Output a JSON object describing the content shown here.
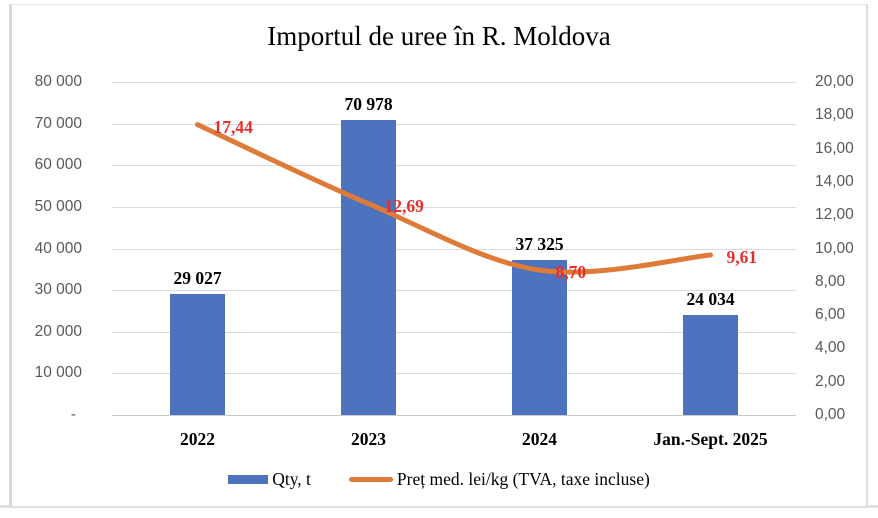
{
  "title": "Importul de uree în R. Moldova",
  "chart_data": {
    "type": "combo_bar_line",
    "title": "Importul de uree în R. Moldova",
    "categories": [
      "2022",
      "2023",
      "2024",
      "Jan.-Sept. 2025"
    ],
    "series": [
      {
        "name": "Qty, t",
        "type": "bar",
        "axis": "left",
        "values": [
          29027,
          70978,
          37325,
          24034
        ],
        "data_labels": [
          "29 027",
          "70 978",
          "37 325",
          "24 034"
        ],
        "color": "#4d73be",
        "label_color": "#000000"
      },
      {
        "name": "Preț med. lei/kg (TVA, taxe incluse)",
        "type": "line",
        "axis": "right",
        "values": [
          17.44,
          12.69,
          8.7,
          9.61
        ],
        "data_labels": [
          "17,44",
          "12,69",
          "8,70",
          "9,61"
        ],
        "color": "#df7b38",
        "label_color": "#e4302b"
      }
    ],
    "left_axis": {
      "min": 0,
      "max": 80000,
      "step": 10000,
      "tick_labels": [
        "80 000",
        "70 000",
        "60 000",
        "50 000",
        "40 000",
        "30 000",
        "20 000",
        "10 000",
        "-"
      ]
    },
    "right_axis": {
      "min": 0,
      "max": 20,
      "step": 2,
      "tick_labels": [
        "20,00",
        "18,00",
        "16,00",
        "14,00",
        "12,00",
        "10,00",
        "8,00",
        "6,00",
        "4,00",
        "2,00",
        "0,00"
      ]
    },
    "grid": true,
    "legend_position": "bottom",
    "xlabel": "",
    "ylabel": ""
  },
  "colors": {
    "bar": "#4d73be",
    "line": "#df7b38",
    "red_label": "#e4302b",
    "axis_text": "#595959",
    "gridline": "#dadada",
    "frame_border": "#d9d9d9"
  }
}
